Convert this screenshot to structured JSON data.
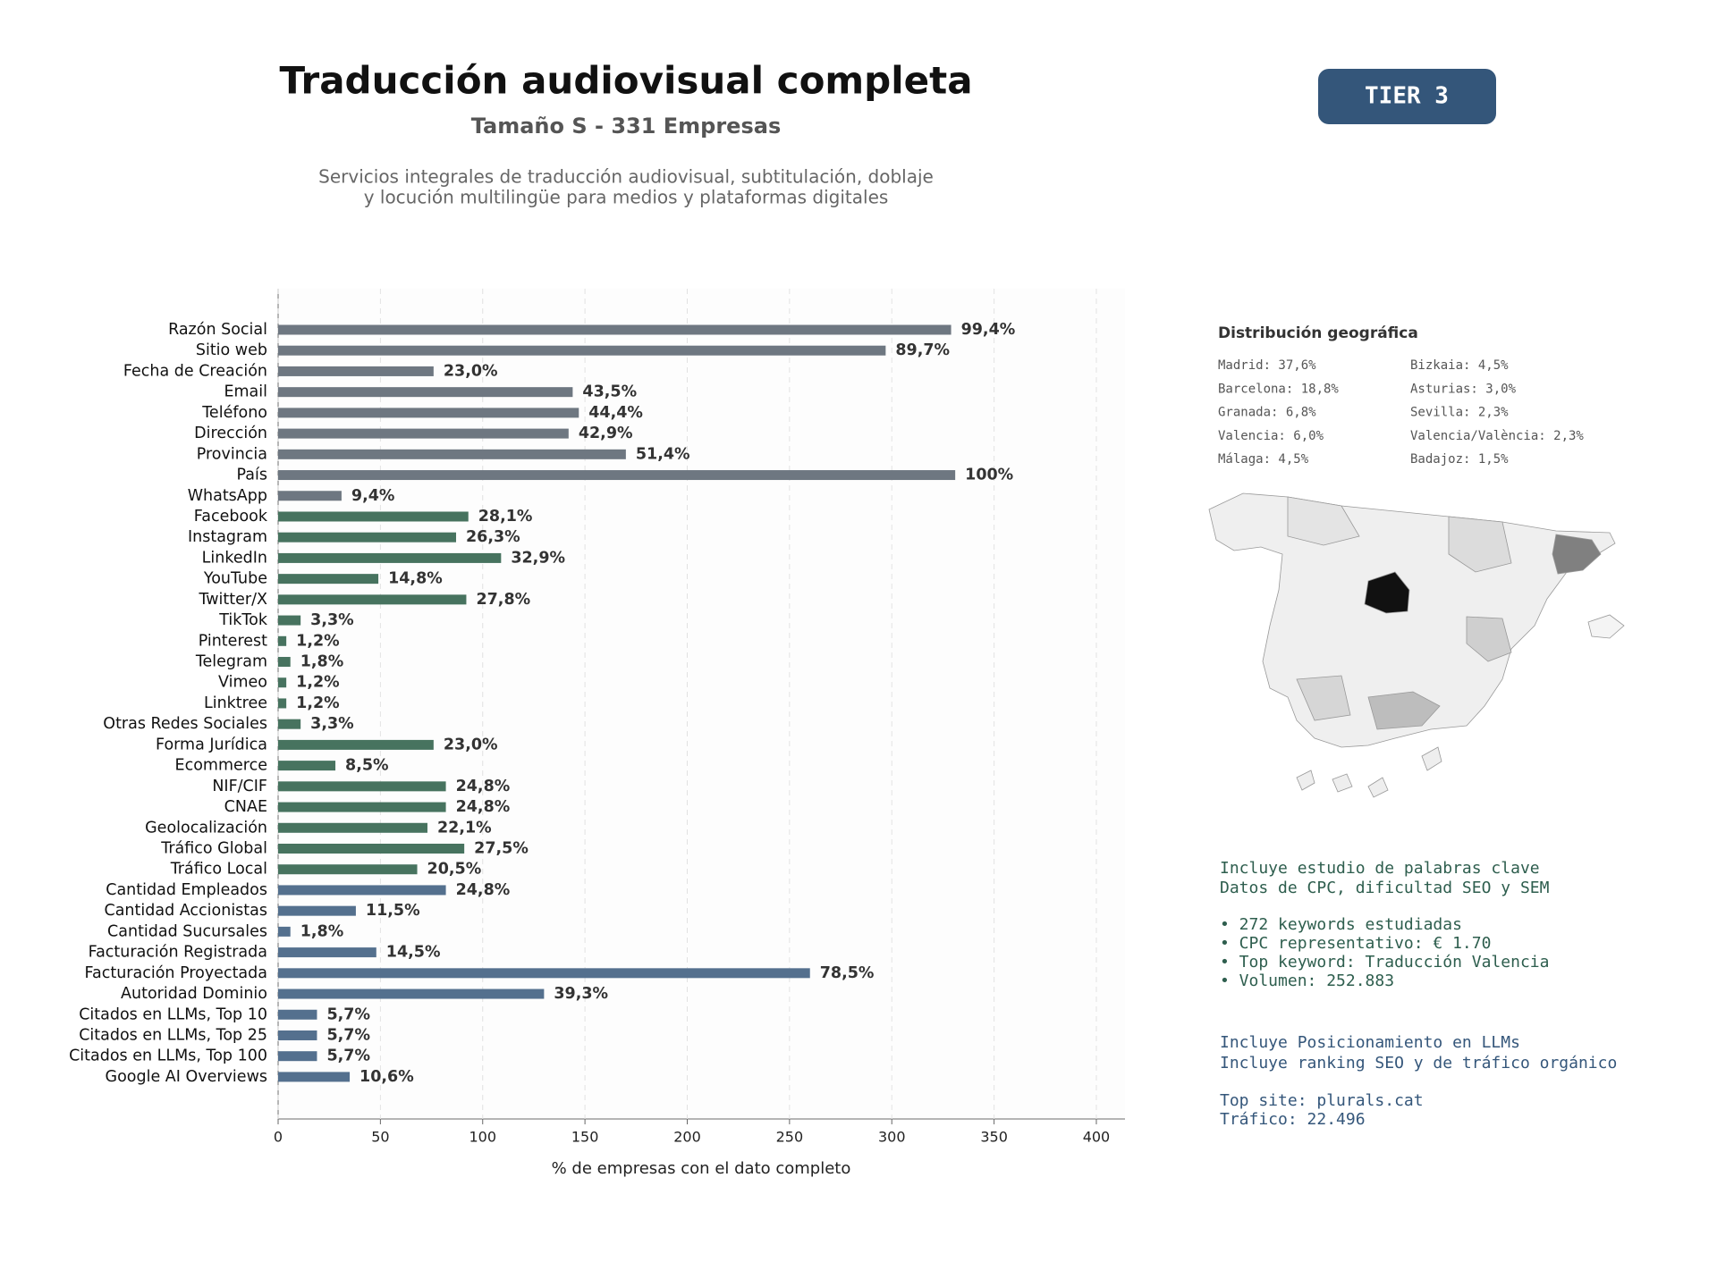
{
  "chart_data": {
    "type": "barh",
    "title": "Traducción audiovisual completa",
    "subtitle": "Tamaño S - 331 Empresas",
    "description": [
      "Servicios integrales de traducción audiovisual, subtitulación, doblaje",
      "y locución multilingüe para medios y plataformas digitales"
    ],
    "xlabel": "% de empresas con el dato completo",
    "categories": [
      "Razón Social",
      "Sitio web",
      "Fecha de Creación",
      "Email",
      "Teléfono",
      "Dirección",
      "Provincia",
      "País",
      "WhatsApp",
      "Facebook",
      "Instagram",
      "LinkedIn",
      "YouTube",
      "Twitter/X",
      "TikTok",
      "Pinterest",
      "Telegram",
      "Vimeo",
      "Linktree",
      "Otras Redes Sociales",
      "Forma Jurídica",
      "Ecommerce",
      "NIF/CIF",
      "CNAE",
      "Geolocalización",
      "Tráfico Global",
      "Tráfico Local",
      "Cantidad Empleados",
      "Cantidad Accionistas",
      "Cantidad Sucursales",
      "Facturación Registrada",
      "Facturación Proyectada",
      "Autoridad Dominio",
      "Citados en LLMs, Top 10",
      "Citados en LLMs, Top 25",
      "Citados en LLMs, Top 100",
      "Google AI Overviews"
    ],
    "values": [
      329,
      297,
      76,
      144,
      147,
      142,
      170,
      331,
      31,
      93,
      87,
      109,
      49,
      92,
      11,
      4,
      6,
      4,
      4,
      11,
      76,
      28,
      82,
      82,
      73,
      91,
      68,
      82,
      38,
      6,
      48,
      260,
      130,
      19,
      19,
      19,
      35
    ],
    "value_labels": [
      "99,4%",
      "89,7%",
      "23,0%",
      "43,5%",
      "44,4%",
      "42,9%",
      "51,4%",
      "100%",
      "9,4%",
      "28,1%",
      "26,3%",
      "32,9%",
      "14,8%",
      "27,8%",
      "3,3%",
      "1,2%",
      "1,8%",
      "1,2%",
      "1,2%",
      "3,3%",
      "23,0%",
      "8,5%",
      "24,8%",
      "24,8%",
      "22,1%",
      "27,5%",
      "20,5%",
      "24,8%",
      "11,5%",
      "1,8%",
      "14,5%",
      "78,5%",
      "39,3%",
      "5,7%",
      "5,7%",
      "5,7%",
      "10,6%"
    ],
    "colors": [
      "#6e7781",
      "#6e7781",
      "#6e7781",
      "#6e7781",
      "#6e7781",
      "#6e7781",
      "#6e7781",
      "#6e7781",
      "#6e7781",
      "#47735f",
      "#47735f",
      "#47735f",
      "#47735f",
      "#47735f",
      "#47735f",
      "#47735f",
      "#47735f",
      "#47735f",
      "#47735f",
      "#47735f",
      "#47735f",
      "#47735f",
      "#47735f",
      "#47735f",
      "#47735f",
      "#47735f",
      "#47735f",
      "#54708e",
      "#54708e",
      "#54708e",
      "#54708e",
      "#54708e",
      "#54708e",
      "#54708e",
      "#54708e",
      "#54708e",
      "#54708e"
    ],
    "xlim": [
      0,
      414
    ],
    "xticks": [
      0,
      50,
      100,
      150,
      200,
      250,
      300,
      350,
      400
    ],
    "grid": true
  },
  "badge": "TIER 3",
  "geo": {
    "title": "Distribución geográfica",
    "items": [
      "Madrid: 37,6%",
      "Barcelona: 18,8%",
      "Granada: 6,8%",
      "Valencia: 6,0%",
      "Málaga: 4,5%",
      "Bizkaia: 4,5%",
      "Asturias: 3,0%",
      "Sevilla: 2,3%",
      "Valencia/València: 2,3%",
      "Badajoz: 1,5%"
    ]
  },
  "notes_keywords": [
    "Incluye estudio de palabras clave",
    "Datos de CPC, dificultad SEO y SEM"
  ],
  "notes_keywords_list": [
    "• 272 keywords estudiadas",
    "• CPC representativo: € 1.70",
    "• Top keyword: Traducción Valencia",
    "• Volumen: 252.883"
  ],
  "notes_llm": [
    "Incluye Posicionamiento en LLMs",
    "Incluye ranking SEO y de tráfico orgánico"
  ],
  "notes_site": [
    "Top site: plurals.cat",
    "Tráfico: 22.496"
  ]
}
